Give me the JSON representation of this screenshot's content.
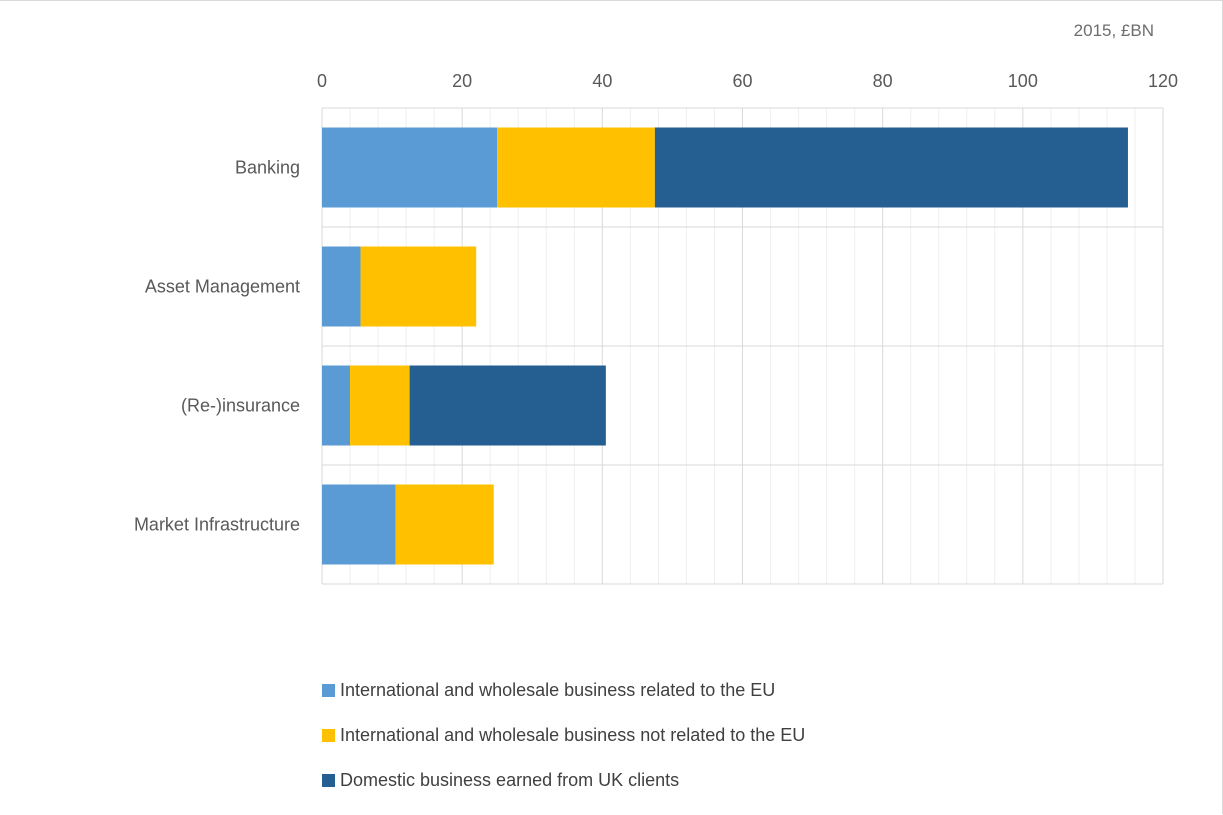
{
  "chart_data": {
    "type": "bar",
    "orientation": "horizontal",
    "stacked": true,
    "unit_label": "2015, £BN",
    "categories": [
      "Banking",
      "Asset Management",
      "(Re-)insurance",
      "Market Infrastructure"
    ],
    "series": [
      {
        "name": "International and wholesale business related to the EU",
        "color": "#5b9bd5",
        "values": [
          25,
          5.5,
          4,
          10.5
        ]
      },
      {
        "name": "International and wholesale business not related to the EU",
        "color": "#ffc000",
        "values": [
          22.5,
          16.5,
          8.5,
          14
        ]
      },
      {
        "name": "Domestic business earned from UK clients",
        "color": "#255e91",
        "values": [
          67.5,
          0,
          28,
          0
        ]
      }
    ],
    "xlim": [
      0,
      120
    ],
    "x_ticks": [
      "0",
      "20",
      "40",
      "60",
      "80",
      "100",
      "120"
    ],
    "x_tick_values": [
      0,
      20,
      40,
      60,
      80,
      100,
      120
    ],
    "x_axis_position": "top",
    "grid": true,
    "legend_position": "bottom"
  }
}
